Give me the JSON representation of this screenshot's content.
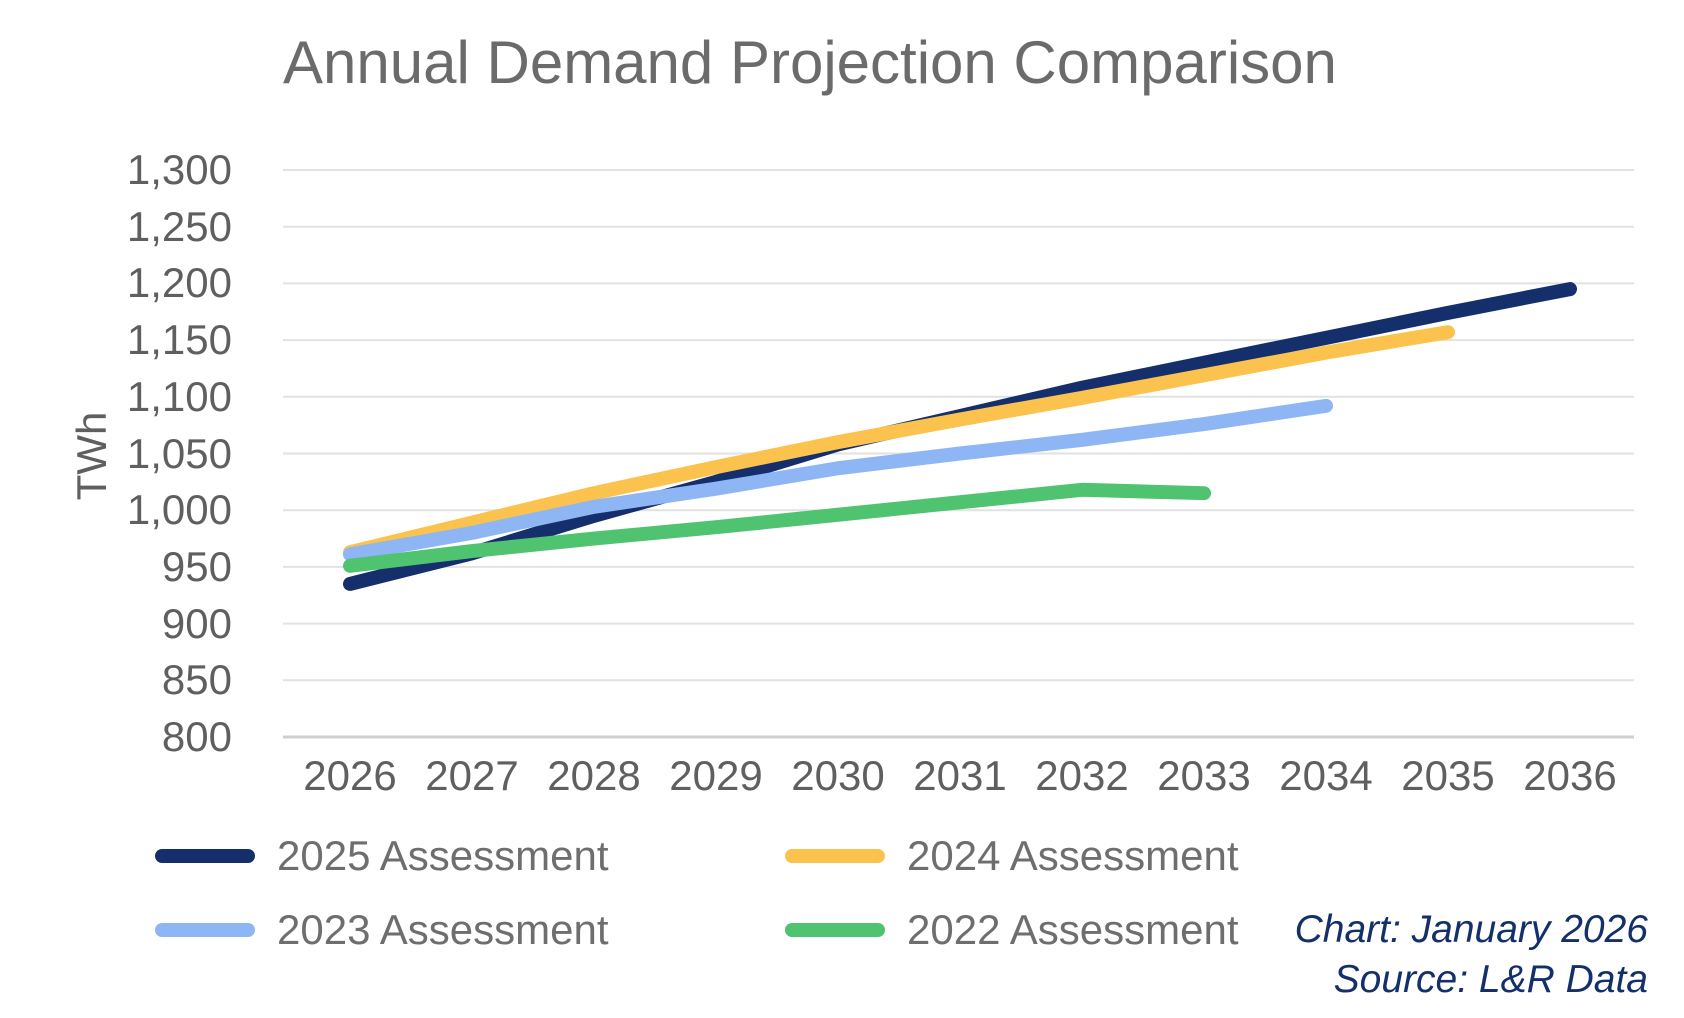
{
  "title": "Annual Demand Projection Comparison",
  "y_axis": {
    "label": "TWh",
    "tick_labels": [
      "1,300",
      "1,250",
      "1,200",
      "1,150",
      "1,100",
      "1,050",
      "1,000",
      "950",
      "900",
      "850",
      "800"
    ],
    "tick_values": [
      1300,
      1250,
      1200,
      1150,
      1100,
      1050,
      1000,
      950,
      900,
      850,
      800
    ]
  },
  "x_axis": {
    "tick_labels": [
      "2026",
      "2027",
      "2028",
      "2029",
      "2030",
      "2031",
      "2032",
      "2033",
      "2034",
      "2035",
      "2036"
    ]
  },
  "legend": [
    {
      "label": "2025 Assessment",
      "color": "#152f6c"
    },
    {
      "label": "2024 Assessment",
      "color": "#fbc34d"
    },
    {
      "label": "2023 Assessment",
      "color": "#8fb6f4"
    },
    {
      "label": "2022 Assessment",
      "color": "#4fc36f"
    }
  ],
  "notes": {
    "chart_note": "Chart: January 2026",
    "source_note": "Source: L&R Data"
  },
  "colors": {
    "gridline": "#e2e2e2",
    "baseline": "#cfcfcf",
    "title_text": "#6b6b6b",
    "axis_text": "#5f5f5f",
    "legend_text": "#6e6e6e",
    "note_text": "#14306b"
  },
  "chart_data": {
    "type": "line",
    "title": "Annual Demand Projection Comparison",
    "xlabel": "",
    "ylabel": "TWh",
    "ylim": [
      800,
      1300
    ],
    "y_tick_step": 50,
    "grid": "horizontal",
    "legend_position": "bottom",
    "categories": [
      2026,
      2027,
      2028,
      2029,
      2030,
      2031,
      2032,
      2033,
      2034,
      2035,
      2036
    ],
    "series": [
      {
        "name": "2025 Assessment",
        "color": "#152f6c",
        "values": [
          935,
          962,
          995,
          1025,
          1058,
          1083,
          1108,
          1130,
          1152,
          1174,
          1195
        ]
      },
      {
        "name": "2024 Assessment",
        "color": "#fbc34d",
        "values": [
          963,
          989,
          1015,
          1038,
          1060,
          1080,
          1099,
          1119,
          1139,
          1157
        ]
      },
      {
        "name": "2023 Assessment",
        "color": "#8fb6f4",
        "values": [
          961,
          980,
          1003,
          1019,
          1037,
          1050,
          1062,
          1076,
          1092
        ]
      },
      {
        "name": "2022 Assessment",
        "color": "#4fc36f",
        "values": [
          951,
          964,
          975,
          985,
          996,
          1007,
          1018,
          1015
        ]
      }
    ]
  }
}
